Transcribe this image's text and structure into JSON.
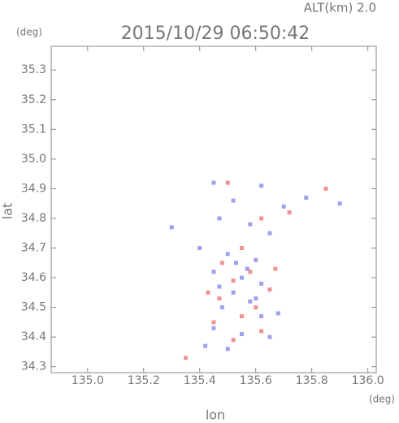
{
  "chart_data": {
    "type": "scatter",
    "title": "2015/10/29 06:50:42",
    "subtitle": "ALT(km) 2.0",
    "y_unit": "(deg)",
    "x_unit": "(deg)",
    "xlabel": "lon",
    "ylabel": "lat",
    "xlim": [
      134.87,
      136.03
    ],
    "ylim": [
      34.28,
      35.38
    ],
    "xticks": [
      {
        "value": 135,
        "label": "135.0"
      },
      135.2,
      135.4,
      135.6,
      135.8,
      {
        "value": 136,
        "label": "136.0"
      }
    ],
    "yticks": [
      34.3,
      34.4,
      34.5,
      34.6,
      34.7,
      34.8,
      34.9,
      {
        "value": 35,
        "label": "35.0"
      },
      35.1,
      35.2,
      35.3
    ],
    "series": [
      {
        "color": "#8888ee",
        "x": [
          135.45,
          135.62,
          135.52,
          135.7,
          135.78,
          135.47,
          135.58,
          135.65,
          135.4,
          135.5,
          135.6,
          135.45,
          135.55,
          135.62,
          135.52,
          135.58,
          135.48,
          135.62,
          135.45,
          135.55,
          135.65,
          135.42,
          135.5,
          135.3,
          135.9,
          135.57,
          135.53,
          135.47,
          135.6,
          135.68
        ],
        "y": [
          34.92,
          34.91,
          34.86,
          34.84,
          34.87,
          34.8,
          34.78,
          34.75,
          34.7,
          34.68,
          34.66,
          34.62,
          34.6,
          34.58,
          34.55,
          34.52,
          34.5,
          34.47,
          34.43,
          34.41,
          34.4,
          34.37,
          34.36,
          34.77,
          34.85,
          34.63,
          34.65,
          34.57,
          34.53,
          34.48
        ]
      },
      {
        "color": "#ee7777",
        "x": [
          135.5,
          135.85,
          135.62,
          135.72,
          135.55,
          135.48,
          135.58,
          135.52,
          135.65,
          135.47,
          135.6,
          135.55,
          135.45,
          135.62,
          135.52,
          135.35,
          135.67,
          135.43
        ],
        "y": [
          34.92,
          34.9,
          34.8,
          34.82,
          34.7,
          34.65,
          34.62,
          34.59,
          34.56,
          34.53,
          34.5,
          34.47,
          34.45,
          34.42,
          34.39,
          34.33,
          34.63,
          34.55
        ]
      }
    ]
  }
}
